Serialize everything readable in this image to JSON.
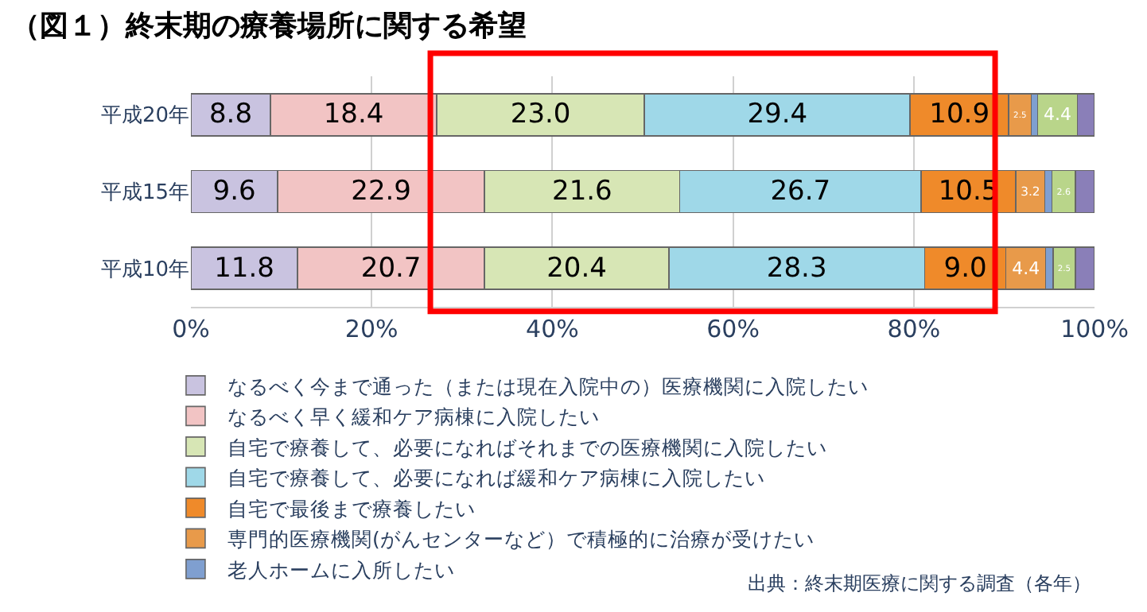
{
  "chart_data": {
    "type": "bar",
    "orientation": "horizontal",
    "stacked": true,
    "title": "（図１）終末期の療養場所に関する希望",
    "categories": [
      "平成20年",
      "平成15年",
      "平成10年"
    ],
    "series": [
      {
        "name": "なるべく今まで通った（または現在入院中の）医療機関に入院したい",
        "color": "#c9c3e0",
        "values": [
          8.8,
          9.6,
          11.8
        ],
        "value_labels": [
          "8.8",
          "9.6",
          "11.8"
        ]
      },
      {
        "name": "なるべく早く緩和ケア病棟に入院したい",
        "color": "#f2c4c4",
        "values": [
          18.4,
          22.9,
          20.7
        ],
        "value_labels": [
          "18.4",
          "22.9",
          "20.7"
        ]
      },
      {
        "name": "自宅で療養して、必要になればそれまでの医療機関に入院したい",
        "color": "#d7e6b5",
        "values": [
          23.0,
          21.6,
          20.4
        ],
        "value_labels": [
          "23.0",
          "21.6",
          "20.4"
        ]
      },
      {
        "name": "自宅で療養して、必要になれば緩和ケア病棟に入院したい",
        "color": "#9fd8e8",
        "values": [
          29.4,
          26.7,
          28.3
        ],
        "value_labels": [
          "29.4",
          "26.7",
          "28.3"
        ]
      },
      {
        "name": "自宅で最後まで療養したい",
        "color": "#ef8a2a",
        "values": [
          10.9,
          10.5,
          9.0
        ],
        "value_labels": [
          "10.9",
          "10.5",
          "9.0"
        ]
      },
      {
        "name": "専門的医療機関(がんセンターなど）で積極的に治療が受けたい",
        "color": "#e89a4a",
        "values": [
          2.5,
          3.2,
          4.4
        ],
        "value_labels": [
          "2.5",
          "3.2",
          "4.4"
        ]
      },
      {
        "name": "老人ホームに入所したい",
        "color": "#7f9fd0",
        "values": [
          0.7,
          0.8,
          0.8
        ]
      },
      {
        "color": "#b9d58a",
        "values": [
          4.4,
          2.6,
          2.5
        ],
        "value_labels": [
          "4.4",
          "2.6",
          "2.5"
        ]
      },
      {
        "color": "#8a7fb8",
        "values": [
          1.9,
          2.1,
          2.1
        ]
      }
    ],
    "xlim": [
      0,
      100
    ],
    "xticks": [
      {
        "value": 0,
        "label": "0%"
      },
      {
        "value": 20,
        "label": "20%"
      },
      {
        "value": 40,
        "label": "40%"
      },
      {
        "value": 60,
        "label": "60%"
      },
      {
        "value": 80,
        "label": "80%"
      },
      {
        "value": 100,
        "label": "100%"
      }
    ],
    "grid": "x",
    "legend": "bottom left",
    "annotations": [
      "出典：終末期医療に関する調査（各年）"
    ]
  }
}
